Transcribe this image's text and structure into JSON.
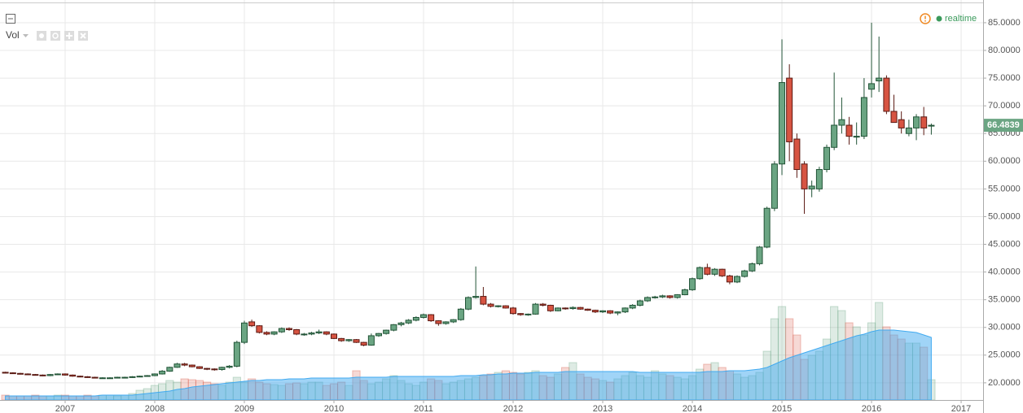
{
  "chart_data": {
    "type": "candlestick",
    "indicator": "Vol",
    "status": "realtime",
    "last_price": 66.4839,
    "up_color": "#6ba583",
    "down_color": "#d75442",
    "volume_ma_color": "#41aaf0",
    "grid": true,
    "xlim": [
      2006.273,
      2017.245
    ],
    "xticks": [
      2007,
      2008,
      2009,
      2010,
      2011,
      2012,
      2013,
      2014,
      2015,
      2016,
      2017
    ],
    "ylim": [
      16.9,
      89.1
    ],
    "yticks": [
      {
        "value": 20,
        "label": "20.0000"
      },
      {
        "value": 25,
        "label": "25.0000"
      },
      {
        "value": 30,
        "label": "30.0000"
      },
      {
        "value": 35,
        "label": "35.0000"
      },
      {
        "value": 40,
        "label": "40.0000"
      },
      {
        "value": 45,
        "label": "45.0000"
      },
      {
        "value": 50,
        "label": "50.0000"
      },
      {
        "value": 55,
        "label": "55.0000"
      },
      {
        "value": 60,
        "label": "60.0000"
      },
      {
        "value": 65,
        "label": "65.0000"
      },
      {
        "value": 70,
        "label": "70.0000"
      },
      {
        "value": 75,
        "label": "75.0000"
      },
      {
        "value": 80,
        "label": "80.0000"
      },
      {
        "value": 85,
        "label": "85.0000"
      }
    ],
    "x": [
      2006.333,
      2006.417,
      2006.5,
      2006.583,
      2006.667,
      2006.75,
      2006.833,
      2006.917,
      2007,
      2007.083,
      2007.167,
      2007.25,
      2007.333,
      2007.417,
      2007.5,
      2007.583,
      2007.667,
      2007.75,
      2007.833,
      2007.917,
      2008,
      2008.083,
      2008.167,
      2008.25,
      2008.333,
      2008.417,
      2008.5,
      2008.583,
      2008.667,
      2008.75,
      2008.833,
      2008.917,
      2009,
      2009.083,
      2009.167,
      2009.25,
      2009.333,
      2009.417,
      2009.5,
      2009.583,
      2009.667,
      2009.75,
      2009.833,
      2009.917,
      2010,
      2010.083,
      2010.167,
      2010.25,
      2010.333,
      2010.417,
      2010.5,
      2010.583,
      2010.667,
      2010.75,
      2010.833,
      2010.917,
      2011,
      2011.083,
      2011.167,
      2011.25,
      2011.333,
      2011.417,
      2011.5,
      2011.583,
      2011.667,
      2011.75,
      2011.833,
      2011.917,
      2012,
      2012.083,
      2012.167,
      2012.25,
      2012.333,
      2012.417,
      2012.5,
      2012.583,
      2012.667,
      2012.75,
      2012.833,
      2012.917,
      2013,
      2013.083,
      2013.167,
      2013.25,
      2013.333,
      2013.417,
      2013.5,
      2013.583,
      2013.667,
      2013.75,
      2013.833,
      2013.917,
      2014,
      2014.083,
      2014.167,
      2014.25,
      2014.333,
      2014.417,
      2014.5,
      2014.583,
      2014.667,
      2014.75,
      2014.833,
      2014.917,
      2015,
      2015.083,
      2015.167,
      2015.25,
      2015.333,
      2015.417,
      2015.5,
      2015.583,
      2015.667,
      2015.75,
      2015.833,
      2015.917,
      2016,
      2016.083,
      2016.167,
      2016.25,
      2016.333,
      2016.417,
      2016.5,
      2016.583,
      2016.667
    ],
    "open": [
      21.9,
      21.8,
      21.7,
      21.6,
      21.5,
      21.4,
      21.3,
      21.5,
      21.6,
      21.4,
      21.2,
      21.1,
      21.0,
      20.9,
      20.9,
      20.9,
      21.0,
      21.0,
      21.1,
      21.2,
      21.3,
      21.6,
      22.1,
      22.8,
      23.4,
      23.2,
      22.9,
      22.6,
      22.5,
      22.4,
      22.8,
      23.0,
      27.3,
      31.0,
      30.3,
      29.1,
      28.8,
      29.2,
      29.8,
      29.6,
      28.8,
      28.8,
      29.0,
      29.2,
      28.8,
      28.0,
      27.6,
      27.8,
      27.3,
      26.8,
      28.5,
      28.9,
      29.5,
      30.5,
      30.8,
      31.3,
      31.8,
      32.3,
      31.2,
      30.7,
      31.0,
      31.4,
      33.3,
      35.4,
      35.6,
      34.2,
      33.8,
      33.9,
      33.5,
      32.5,
      32.3,
      32.4,
      34.2,
      34.0,
      33.0,
      33.5,
      33.4,
      33.6,
      33.3,
      33.1,
      32.8,
      33.0,
      32.6,
      32.8,
      33.5,
      34.0,
      34.8,
      35.4,
      35.5,
      35.7,
      35.4,
      35.9,
      36.8,
      38.8,
      40.8,
      39.6,
      40.5,
      39.3,
      38.2,
      39.2,
      40.2,
      41.5,
      44.5,
      51.5,
      59.5,
      75.0,
      64.0,
      59.5,
      55.0,
      55.0,
      58.5,
      62.5,
      66.5,
      66.5,
      64.5,
      64.5,
      73.0,
      74.5,
      75.0,
      69.0,
      67.5,
      65.0,
      66.0,
      68.0,
      66.4
    ],
    "high": [
      22.0,
      21.9,
      21.8,
      21.7,
      21.6,
      21.5,
      21.6,
      21.7,
      21.7,
      21.5,
      21.3,
      21.2,
      21.1,
      21.0,
      21.0,
      21.1,
      21.1,
      21.2,
      21.3,
      21.4,
      21.7,
      22.3,
      22.9,
      23.6,
      23.6,
      23.3,
      23.0,
      22.7,
      22.6,
      22.9,
      23.2,
      27.6,
      31.2,
      31.4,
      30.4,
      29.3,
      29.3,
      30.0,
      30.0,
      29.7,
      29.0,
      29.2,
      29.6,
      29.3,
      28.9,
      28.1,
      27.9,
      27.9,
      27.4,
      28.9,
      29.0,
      29.6,
      30.6,
      31.0,
      31.5,
      32.0,
      32.5,
      32.4,
      31.3,
      31.1,
      31.5,
      33.5,
      35.6,
      41.0,
      37.3,
      34.4,
      34.0,
      34.0,
      33.7,
      32.6,
      32.5,
      34.4,
      34.4,
      34.1,
      33.6,
      33.6,
      33.8,
      33.7,
      33.4,
      33.2,
      33.1,
      33.1,
      32.9,
      33.6,
      34.2,
      35.0,
      35.6,
      35.7,
      35.9,
      35.8,
      36.0,
      37.0,
      39.0,
      41.0,
      41.5,
      40.7,
      40.6,
      39.5,
      39.4,
      40.4,
      41.7,
      44.7,
      51.8,
      60.0,
      82.0,
      77.5,
      65.0,
      60.0,
      56.5,
      59.0,
      63.0,
      76.0,
      71.5,
      68.0,
      67.0,
      75.0,
      85.0,
      82.5,
      75.5,
      72.0,
      69.0,
      67.5,
      68.5,
      69.8,
      66.8
    ],
    "low": [
      21.7,
      21.6,
      21.5,
      21.4,
      21.3,
      21.2,
      21.2,
      21.4,
      21.3,
      21.1,
      21.0,
      20.9,
      20.8,
      20.8,
      20.8,
      20.8,
      20.9,
      20.9,
      21.0,
      21.1,
      21.2,
      21.5,
      22.0,
      22.7,
      23.0,
      22.8,
      22.5,
      22.3,
      22.2,
      22.2,
      22.6,
      22.8,
      27.0,
      30.1,
      28.9,
      28.6,
      28.6,
      29.0,
      29.4,
      28.6,
      28.5,
      28.6,
      28.8,
      28.6,
      27.9,
      27.4,
      27.4,
      27.2,
      26.6,
      26.7,
      28.3,
      28.7,
      29.3,
      30.2,
      30.6,
      31.1,
      31.6,
      31.0,
      30.3,
      30.5,
      30.8,
      31.2,
      33.1,
      35.2,
      34.0,
      33.6,
      33.6,
      33.4,
      32.3,
      32.1,
      32.1,
      32.3,
      33.8,
      32.8,
      32.9,
      33.2,
      33.2,
      33.2,
      33.0,
      32.6,
      32.6,
      32.4,
      32.2,
      32.6,
      33.3,
      33.8,
      34.6,
      35.2,
      35.3,
      35.2,
      35.2,
      35.8,
      36.6,
      38.6,
      39.4,
      39.3,
      39.1,
      37.8,
      38.0,
      39.0,
      40.0,
      41.2,
      44.3,
      51.0,
      57.5,
      60.0,
      57.0,
      50.5,
      53.5,
      54.5,
      58.0,
      62.0,
      65.0,
      63.0,
      63.0,
      64.0,
      71.5,
      72.5,
      68.5,
      67.0,
      65.0,
      64.5,
      63.8,
      64.7,
      64.8
    ],
    "close": [
      21.8,
      21.7,
      21.6,
      21.5,
      21.4,
      21.3,
      21.5,
      21.6,
      21.4,
      21.2,
      21.1,
      21.0,
      20.9,
      20.9,
      20.9,
      21.0,
      21.0,
      21.1,
      21.2,
      21.3,
      21.6,
      22.1,
      22.8,
      23.4,
      23.2,
      22.9,
      22.6,
      22.5,
      22.4,
      22.8,
      23.0,
      27.3,
      30.8,
      30.3,
      29.1,
      28.8,
      29.2,
      29.8,
      29.6,
      28.8,
      28.8,
      29.0,
      29.2,
      28.8,
      28.0,
      27.6,
      27.8,
      27.3,
      26.8,
      28.5,
      28.9,
      29.5,
      30.5,
      30.8,
      31.3,
      31.8,
      32.3,
      31.2,
      30.7,
      31.0,
      31.4,
      33.3,
      35.4,
      35.6,
      34.2,
      33.8,
      33.9,
      33.5,
      32.5,
      32.3,
      32.4,
      34.2,
      34.0,
      33.0,
      33.5,
      33.4,
      33.6,
      33.3,
      33.1,
      32.8,
      33.0,
      32.6,
      32.8,
      33.5,
      34.0,
      34.8,
      35.4,
      35.5,
      35.7,
      35.4,
      35.9,
      36.8,
      38.8,
      40.8,
      39.6,
      40.5,
      39.3,
      38.2,
      39.2,
      40.2,
      41.5,
      44.5,
      51.5,
      59.5,
      74.2,
      63.5,
      58.5,
      55.0,
      55.5,
      58.5,
      62.5,
      66.5,
      67.5,
      64.5,
      64.5,
      71.5,
      74.0,
      75.0,
      69.0,
      67.0,
      66.0,
      66.0,
      68.0,
      66.0,
      66.4839
    ],
    "volume": [
      6,
      5,
      5,
      5,
      6,
      5,
      5,
      6,
      6,
      5,
      5,
      6,
      5,
      6,
      6,
      5,
      6,
      8,
      12,
      14,
      18,
      20,
      24,
      22,
      26,
      25,
      24,
      22,
      20,
      18,
      22,
      28,
      22,
      26,
      22,
      20,
      19,
      18,
      20,
      21,
      20,
      22,
      22,
      18,
      20,
      22,
      18,
      36,
      24,
      20,
      22,
      26,
      30,
      24,
      20,
      18,
      22,
      26,
      24,
      20,
      22,
      24,
      26,
      28,
      30,
      32,
      34,
      36,
      34,
      32,
      34,
      36,
      30,
      28,
      32,
      40,
      46,
      32,
      28,
      26,
      24,
      22,
      26,
      30,
      34,
      30,
      28,
      36,
      32,
      30,
      28,
      26,
      30,
      38,
      44,
      46,
      40,
      36,
      32,
      28,
      30,
      34,
      60,
      100,
      115,
      100,
      80,
      50,
      55,
      60,
      75,
      115,
      110,
      95,
      90,
      80,
      95,
      120,
      90,
      80,
      75,
      70,
      70,
      65,
      25
    ],
    "volume_ma": [
      5,
      5,
      5,
      5,
      5,
      5,
      5,
      5,
      5,
      5,
      5,
      5,
      5,
      6,
      6,
      6,
      6,
      6,
      7,
      8,
      9,
      10,
      11,
      13,
      14,
      16,
      17,
      18,
      19,
      20,
      21,
      22,
      23,
      24,
      24,
      25,
      25,
      25,
      26,
      26,
      26,
      27,
      27,
      27,
      27,
      27,
      27,
      28,
      28,
      28,
      28,
      28,
      29,
      29,
      29,
      29,
      29,
      29,
      29,
      29,
      29,
      30,
      30,
      30,
      31,
      31,
      32,
      32,
      33,
      33,
      33,
      34,
      34,
      34,
      34,
      35,
      35,
      35,
      35,
      35,
      35,
      35,
      35,
      35,
      35,
      34,
      34,
      34,
      34,
      34,
      34,
      34,
      34,
      34,
      35,
      35,
      35,
      36,
      36,
      36,
      37,
      38,
      40,
      44,
      48,
      52,
      55,
      58,
      61,
      64,
      67,
      70,
      73,
      76,
      79,
      81,
      84,
      86,
      86,
      86,
      85,
      84,
      83,
      80,
      77
    ]
  }
}
